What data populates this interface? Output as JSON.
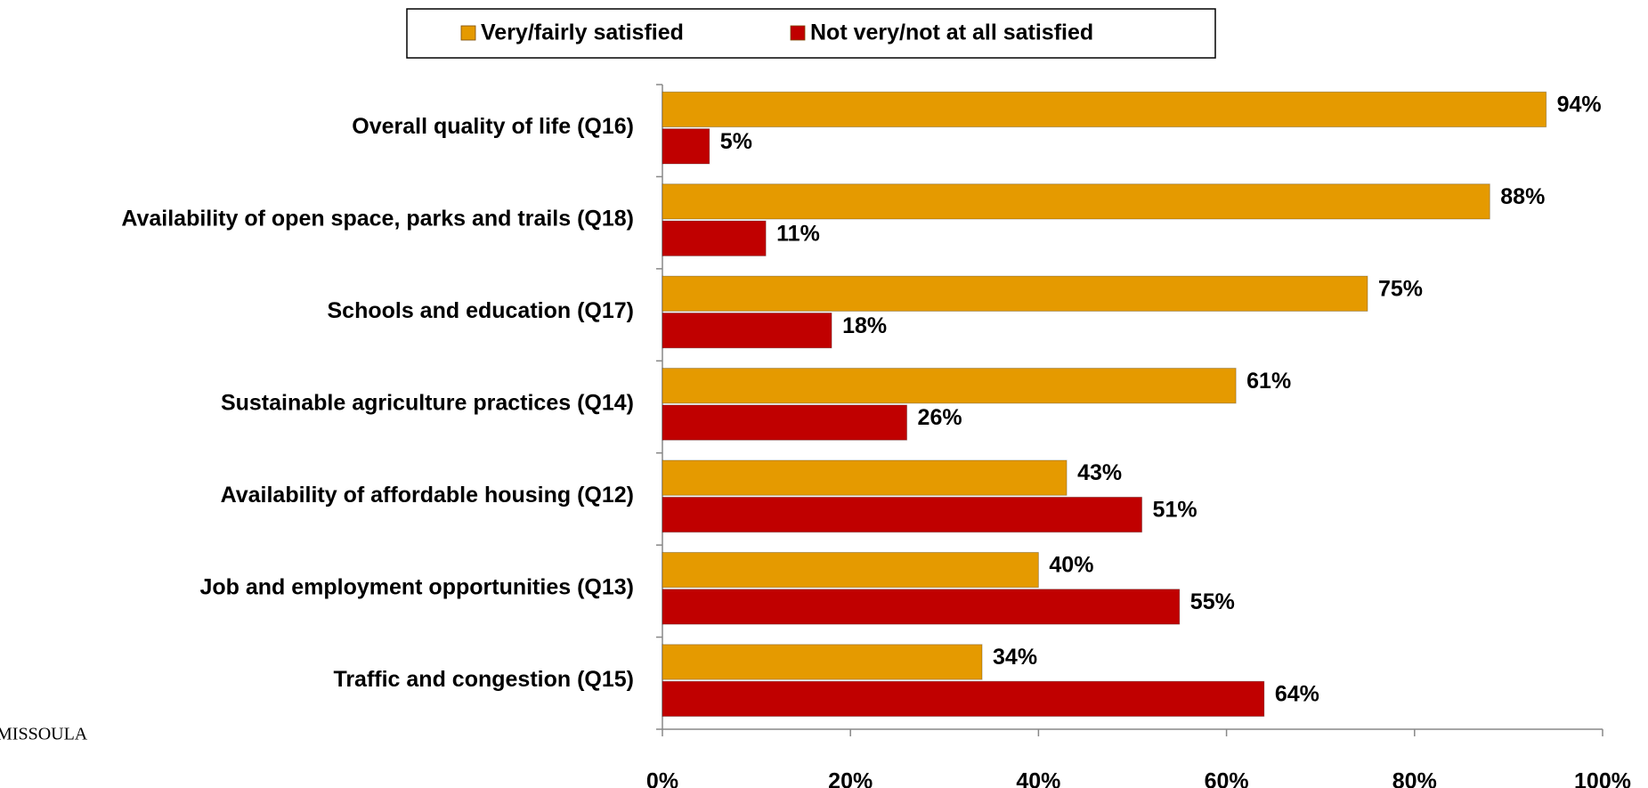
{
  "chart_data": {
    "type": "hbar",
    "categories": [
      "Overall quality of life (Q16)",
      "Availability of open space, parks and trails (Q18)",
      "Schools and education (Q17)",
      "Sustainable agriculture practices (Q14)",
      "Availability of affordable housing (Q12)",
      "Job and employment opportunities (Q13)",
      "Traffic and congestion (Q15)"
    ],
    "series": [
      {
        "name": "Very/fairly satisfied",
        "color": "#e59a00",
        "values": [
          94,
          88,
          75,
          61,
          43,
          40,
          34
        ],
        "value_labels": [
          "94%",
          "88%",
          "75%",
          "61%",
          "43%",
          "40%",
          "34%"
        ]
      },
      {
        "name": "Not very/not at all satisfied",
        "color": "#c00000",
        "values": [
          5,
          11,
          18,
          26,
          51,
          55,
          64
        ],
        "value_labels": [
          "5%",
          "11%",
          "18%",
          "26%",
          "51%",
          "55%",
          "64%"
        ]
      }
    ],
    "xlim": [
      0,
      100
    ],
    "xticks": [
      {
        "value": 0,
        "label": "0%"
      },
      {
        "value": 20,
        "label": "20%"
      },
      {
        "value": 40,
        "label": "40%"
      },
      {
        "value": 60,
        "label": "60%"
      },
      {
        "value": 80,
        "label": "80%"
      },
      {
        "value": 100,
        "label": "100%"
      }
    ],
    "legend": "top",
    "logo_text": "MISSOULA"
  }
}
